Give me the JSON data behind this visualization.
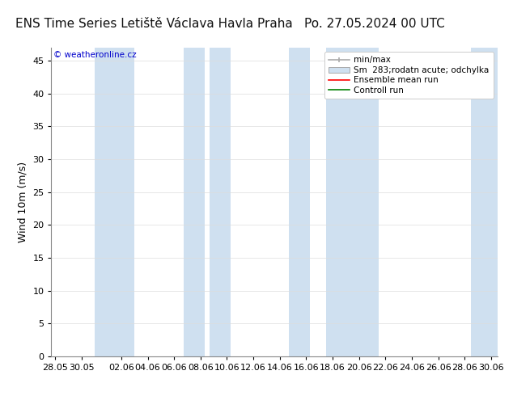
{
  "title_left": "ENS Time Series Letiště Václava Havla Praha",
  "title_right": "Po. 27.05.2024 00 UTC",
  "ylabel": "Wind 10m (m/s)",
  "ylim": [
    0,
    47
  ],
  "yticks": [
    0,
    5,
    10,
    15,
    20,
    25,
    30,
    35,
    40,
    45
  ],
  "x_tick_labels": [
    "28.05",
    "30.05",
    "02.06",
    "04.06",
    "06.06",
    "08.06",
    "10.06",
    "12.06",
    "14.06",
    "16.06",
    "18.06",
    "20.06",
    "22.06",
    "24.06",
    "26.06",
    "28.06",
    "30.06"
  ],
  "shaded_band_color": "#cfe0f0",
  "background_color": "#ffffff",
  "watermark_text": "© weatheronline.cz",
  "watermark_color": "#0000cc",
  "band_centers": [
    4.5,
    10.5,
    12.5,
    18.5,
    22.5,
    32.5
  ],
  "band_half_widths": [
    1.5,
    0.8,
    0.8,
    0.8,
    2.0,
    1.0
  ],
  "title_fontsize": 11,
  "axis_fontsize": 9,
  "tick_fontsize": 8,
  "legend_fontsize": 7.5
}
